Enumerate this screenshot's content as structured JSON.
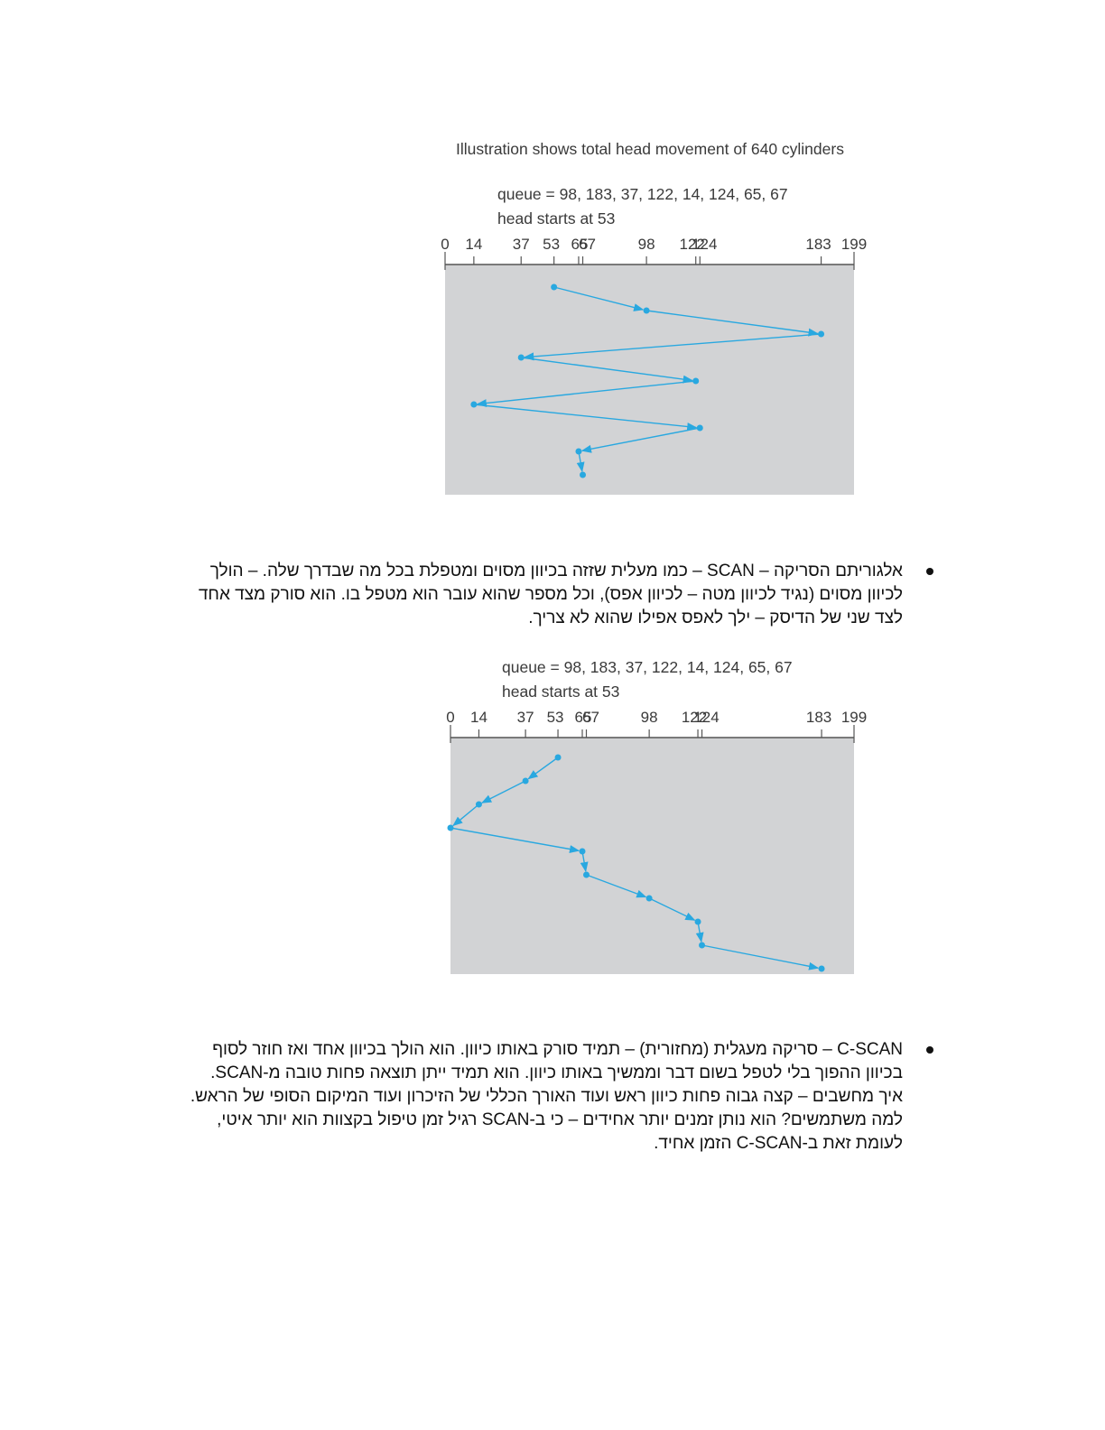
{
  "figure1": {
    "caption": "Illustration shows total head movement of 640 cylinders",
    "queue_text": "queue = 98, 183, 37, 122, 14, 124, 65, 67",
    "head_text": "head starts at 53",
    "ticks": [
      "0",
      "14",
      "37",
      "53",
      "65",
      "67",
      "98",
      "122",
      "124",
      "183",
      "199"
    ],
    "sequence": [
      53,
      98,
      183,
      37,
      122,
      14,
      124,
      65,
      67
    ]
  },
  "bullet1": {
    "lines": [
      "אלגוריתם הסריקה – SCAN – כמו מעלית שזזה בכיוון מסוים ומטפלת בכל מה שבדרך שלה. – הולך",
      "לכיוון מסוים (נגיד לכיוון מטה – לכיוון אפס), וכל מספר שהוא עובר הוא מטפל בו. הוא סורק מצד אחד",
      "לצד שני של הדיסק – ילך לאפס אפילו שהוא לא צריך."
    ]
  },
  "figure2": {
    "queue_text": "queue = 98, 183, 37, 122, 14, 124, 65, 67",
    "head_text": "head starts at 53",
    "ticks": [
      "0",
      "14",
      "37",
      "53",
      "65",
      "67",
      "98",
      "122",
      "124",
      "183",
      "199"
    ],
    "sequence": [
      53,
      37,
      14,
      0,
      65,
      67,
      98,
      122,
      124,
      183
    ]
  },
  "bullet2": {
    "lines": [
      "C-SCAN – סריקה מעגלית (מחזורית) – תמיד סורק באותו כיוון. הוא הולך בכיוון אחד ואז חוזר לסוף",
      "בכיוון ההפוך בלי לטפל בשום דבר וממשיך באותו כיוון. הוא תמיד ייתן תוצאה פחות טובה מ-SCAN.",
      "איך מחשבים – קצה גבוה פחות כיוון ראש ועוד האורך הכללי של הזיכרון ועוד המיקום הסופי של הראש.",
      "למה משתמשים? הוא נותן זמנים יותר אחידים – כי ב-SCAN רגיל זמן טיפול בקצוות הוא יותר איטי,",
      "לעומת זאת ב-C-SCAN הזמן אחיד."
    ]
  },
  "colors": {
    "panel": "#d2d3d5",
    "line": "#29a8e0",
    "axis": "#555555"
  }
}
